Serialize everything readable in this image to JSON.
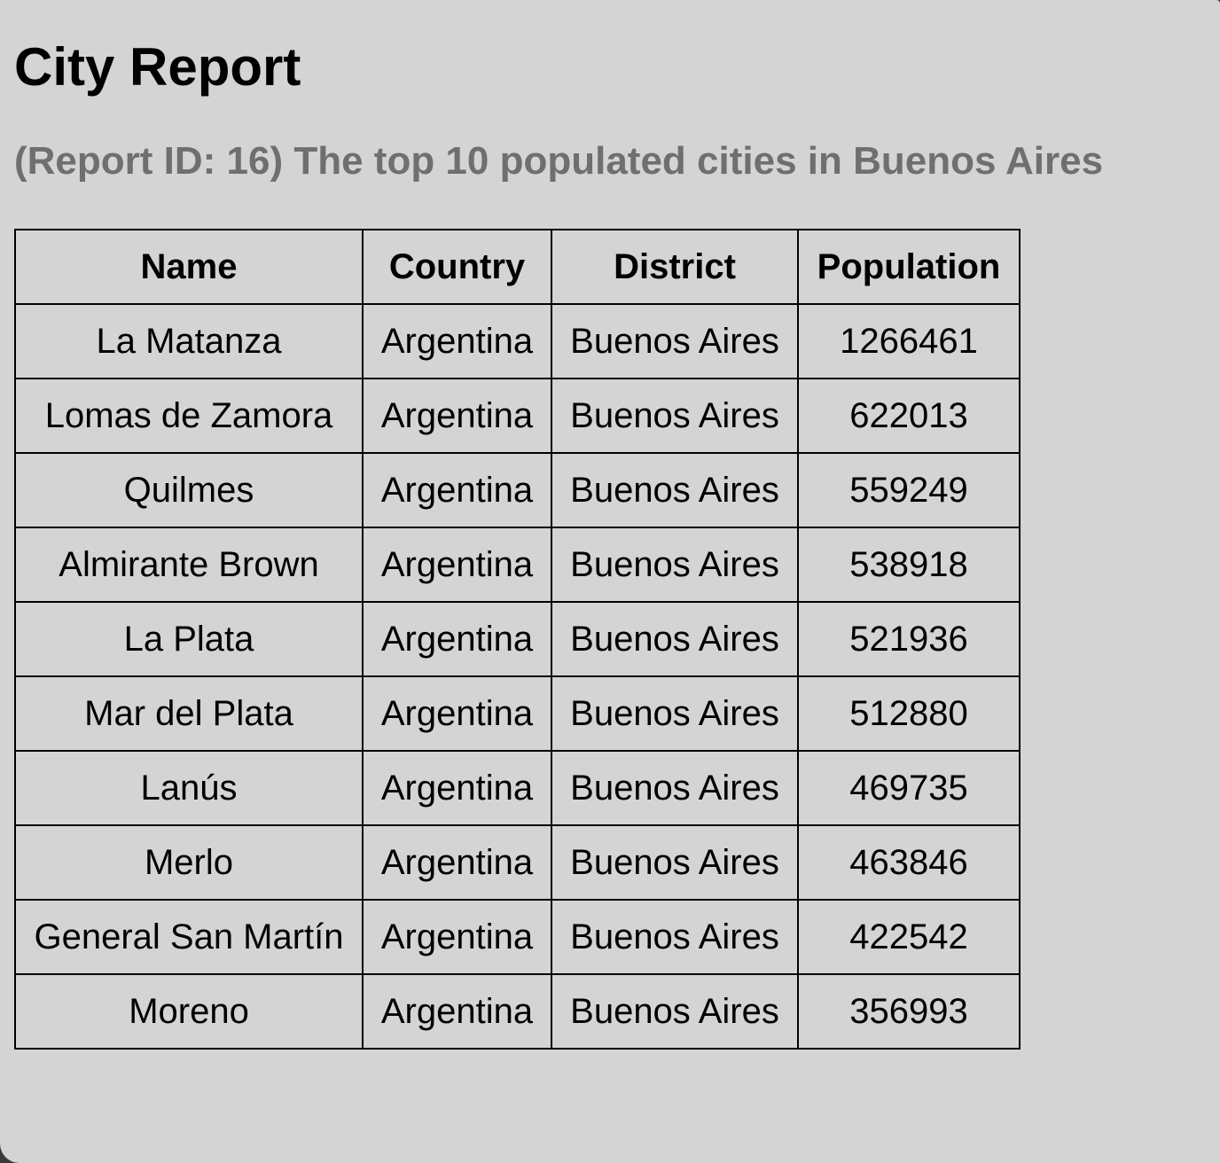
{
  "report": {
    "title": "City Report",
    "subtitle": "(Report ID: 16) The top 10 populated cities in Buenos Aires",
    "columns": [
      "Name",
      "Country",
      "District",
      "Population"
    ],
    "rows": [
      [
        "La Matanza",
        "Argentina",
        "Buenos Aires",
        "1266461"
      ],
      [
        "Lomas de Zamora",
        "Argentina",
        "Buenos Aires",
        "622013"
      ],
      [
        "Quilmes",
        "Argentina",
        "Buenos Aires",
        "559249"
      ],
      [
        "Almirante Brown",
        "Argentina",
        "Buenos Aires",
        "538918"
      ],
      [
        "La Plata",
        "Argentina",
        "Buenos Aires",
        "521936"
      ],
      [
        "Mar del Plata",
        "Argentina",
        "Buenos Aires",
        "512880"
      ],
      [
        "Lanús",
        "Argentina",
        "Buenos Aires",
        "469735"
      ],
      [
        "Merlo",
        "Argentina",
        "Buenos Aires",
        "463846"
      ],
      [
        "General San Martín",
        "Argentina",
        "Buenos Aires",
        "422542"
      ],
      [
        "Moreno",
        "Argentina",
        "Buenos Aires",
        "356993"
      ]
    ]
  }
}
